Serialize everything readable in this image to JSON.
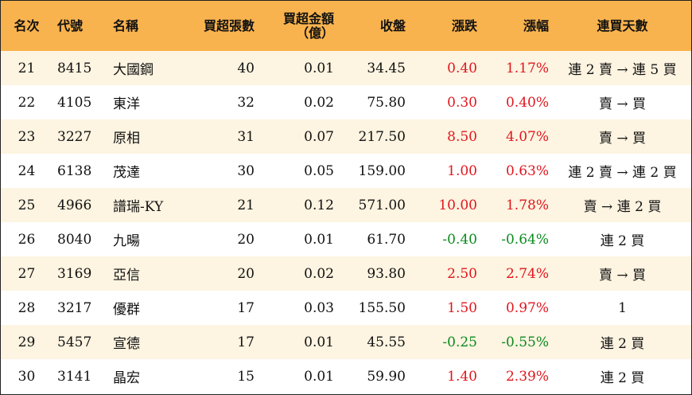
{
  "headers": {
    "rank": "名次",
    "code": "代號",
    "name": "名稱",
    "net_buy_lots": "買超張數",
    "net_buy_amount_line1": "買超金額",
    "net_buy_amount_line2": "（億）",
    "close": "收盤",
    "change": "漲跌",
    "change_pct": "漲幅",
    "consecutive_days": "連買天數"
  },
  "rows": [
    {
      "rank": "21",
      "code": "8415",
      "name": "大國鋼",
      "lots": "40",
      "amount": "0.01",
      "close": "34.45",
      "change": "0.40",
      "pct": "1.17%",
      "trend": "up",
      "days": "連 2 賣 → 連 5 買"
    },
    {
      "rank": "22",
      "code": "4105",
      "name": "東洋",
      "lots": "32",
      "amount": "0.02",
      "close": "75.80",
      "change": "0.30",
      "pct": "0.40%",
      "trend": "up",
      "days": "賣 → 買"
    },
    {
      "rank": "23",
      "code": "3227",
      "name": "原相",
      "lots": "31",
      "amount": "0.07",
      "close": "217.50",
      "change": "8.50",
      "pct": "4.07%",
      "trend": "up",
      "days": "賣 → 買"
    },
    {
      "rank": "24",
      "code": "6138",
      "name": "茂達",
      "lots": "30",
      "amount": "0.05",
      "close": "159.00",
      "change": "1.00",
      "pct": "0.63%",
      "trend": "up",
      "days": "連 2 賣 → 連 2 買"
    },
    {
      "rank": "25",
      "code": "4966",
      "name": "譜瑞-KY",
      "lots": "21",
      "amount": "0.12",
      "close": "571.00",
      "change": "10.00",
      "pct": "1.78%",
      "trend": "up",
      "days": "賣 → 連 2 買"
    },
    {
      "rank": "26",
      "code": "8040",
      "name": "九暘",
      "lots": "20",
      "amount": "0.01",
      "close": "61.70",
      "change": "-0.40",
      "pct": "-0.64%",
      "trend": "down",
      "days": "連 2 買"
    },
    {
      "rank": "27",
      "code": "3169",
      "name": "亞信",
      "lots": "20",
      "amount": "0.02",
      "close": "93.80",
      "change": "2.50",
      "pct": "2.74%",
      "trend": "up",
      "days": "賣 → 買"
    },
    {
      "rank": "28",
      "code": "3217",
      "name": "優群",
      "lots": "17",
      "amount": "0.03",
      "close": "155.50",
      "change": "1.50",
      "pct": "0.97%",
      "trend": "up",
      "days": "1"
    },
    {
      "rank": "29",
      "code": "5457",
      "name": "宣德",
      "lots": "17",
      "amount": "0.01",
      "close": "45.55",
      "change": "-0.25",
      "pct": "-0.55%",
      "trend": "down",
      "days": "連 2 買"
    },
    {
      "rank": "30",
      "code": "3141",
      "name": "晶宏",
      "lots": "15",
      "amount": "0.01",
      "close": "59.90",
      "change": "1.40",
      "pct": "2.39%",
      "trend": "up",
      "days": "連 2 買"
    }
  ],
  "colors": {
    "header_bg": "#f9b34e",
    "odd_row_bg": "#fdf4e1",
    "even_row_bg": "#ffffff",
    "up": "#e0161e",
    "down": "#0a8a1f"
  }
}
